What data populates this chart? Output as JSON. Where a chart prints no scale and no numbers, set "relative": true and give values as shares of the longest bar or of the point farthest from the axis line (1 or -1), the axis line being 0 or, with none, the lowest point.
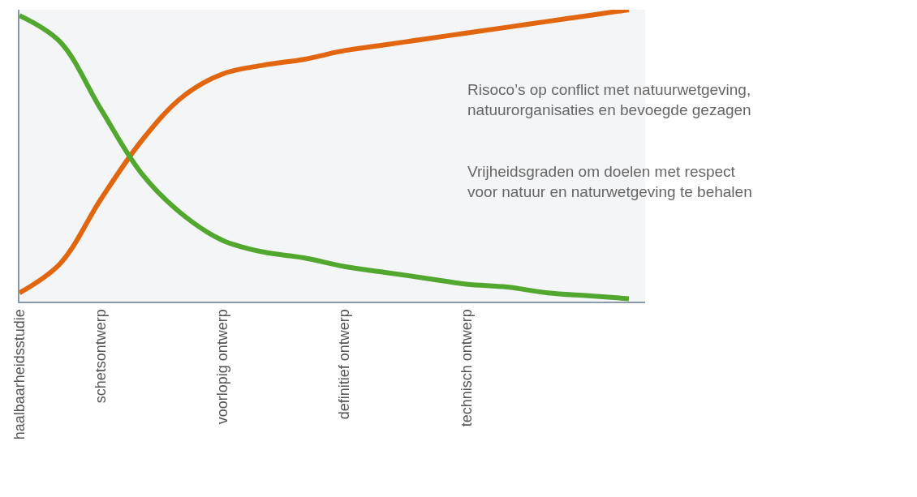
{
  "chart_data": {
    "type": "line",
    "relative": true,
    "categories": [
      "haalbaarheidsstudie",
      null,
      "schetsontwerp",
      null,
      null,
      "voorlopig ontwerp",
      null,
      null,
      "definitief ontwerp",
      null,
      null,
      "technisch ontwerp",
      null,
      null,
      null,
      null
    ],
    "tick_labels": "x",
    "grid": false,
    "marker": "none",
    "line_style": "solid",
    "series": [
      {
        "color": "#e2650f",
        "values": [
          0.03,
          0.13,
          0.35,
          0.55,
          0.7,
          0.78,
          0.81,
          0.83,
          0.86,
          0.88,
          0.9,
          0.92,
          0.94,
          0.96,
          0.98,
          1
        ]
      },
      {
        "color": "#52a72f",
        "values": [
          0.98,
          0.89,
          0.66,
          0.44,
          0.3,
          0.21,
          0.17,
          0.15,
          0.12,
          0.1,
          0.08,
          0.06,
          0.05,
          0.03,
          0.02,
          0.01
        ]
      }
    ],
    "annotations": [
      "Risoco’s op conflict met natuurwetgeving,\nnatuurorganisaties en bevoegde gezagen",
      "Vrijheidsgraden om doelen met respect\nvoor natuur en naturwetgeving te behalen"
    ]
  }
}
